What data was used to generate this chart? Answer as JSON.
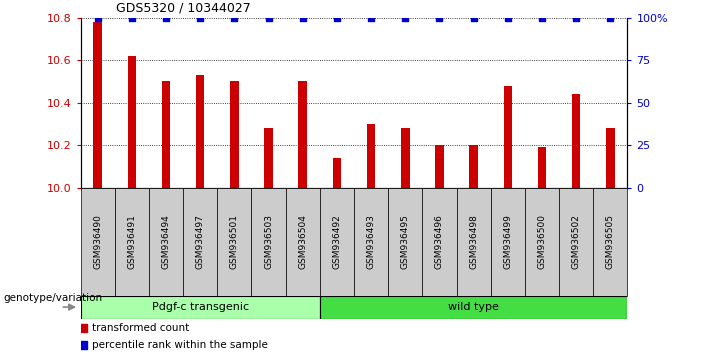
{
  "title": "GDS5320 / 10344027",
  "categories": [
    "GSM936490",
    "GSM936491",
    "GSM936494",
    "GSM936497",
    "GSM936501",
    "GSM936503",
    "GSM936504",
    "GSM936492",
    "GSM936493",
    "GSM936495",
    "GSM936496",
    "GSM936498",
    "GSM936499",
    "GSM936500",
    "GSM936502",
    "GSM936505"
  ],
  "bar_values": [
    10.78,
    10.62,
    10.5,
    10.53,
    10.5,
    10.28,
    10.5,
    10.14,
    10.3,
    10.28,
    10.2,
    10.2,
    10.48,
    10.19,
    10.44,
    10.28
  ],
  "percentile_values": [
    100,
    100,
    100,
    100,
    100,
    100,
    100,
    100,
    100,
    100,
    100,
    100,
    100,
    100,
    100,
    100
  ],
  "bar_color": "#cc0000",
  "percentile_color": "#0000cc",
  "ylim": [
    10.0,
    10.8
  ],
  "yticks": [
    10.0,
    10.2,
    10.4,
    10.6,
    10.8
  ],
  "right_yticks": [
    0,
    25,
    50,
    75,
    100
  ],
  "right_ytick_labels": [
    "0",
    "25",
    "50",
    "75",
    "100%"
  ],
  "group1_label": "Pdgf-c transgenic",
  "group2_label": "wild type",
  "group1_count": 7,
  "group2_count": 9,
  "group1_color": "#aaffaa",
  "group2_color": "#44dd44",
  "genotype_label": "genotype/variation",
  "legend_bar_label": "transformed count",
  "legend_dot_label": "percentile rank within the sample",
  "plot_bg": "#ffffff",
  "xtick_bg": "#cccccc",
  "bar_width": 0.25
}
